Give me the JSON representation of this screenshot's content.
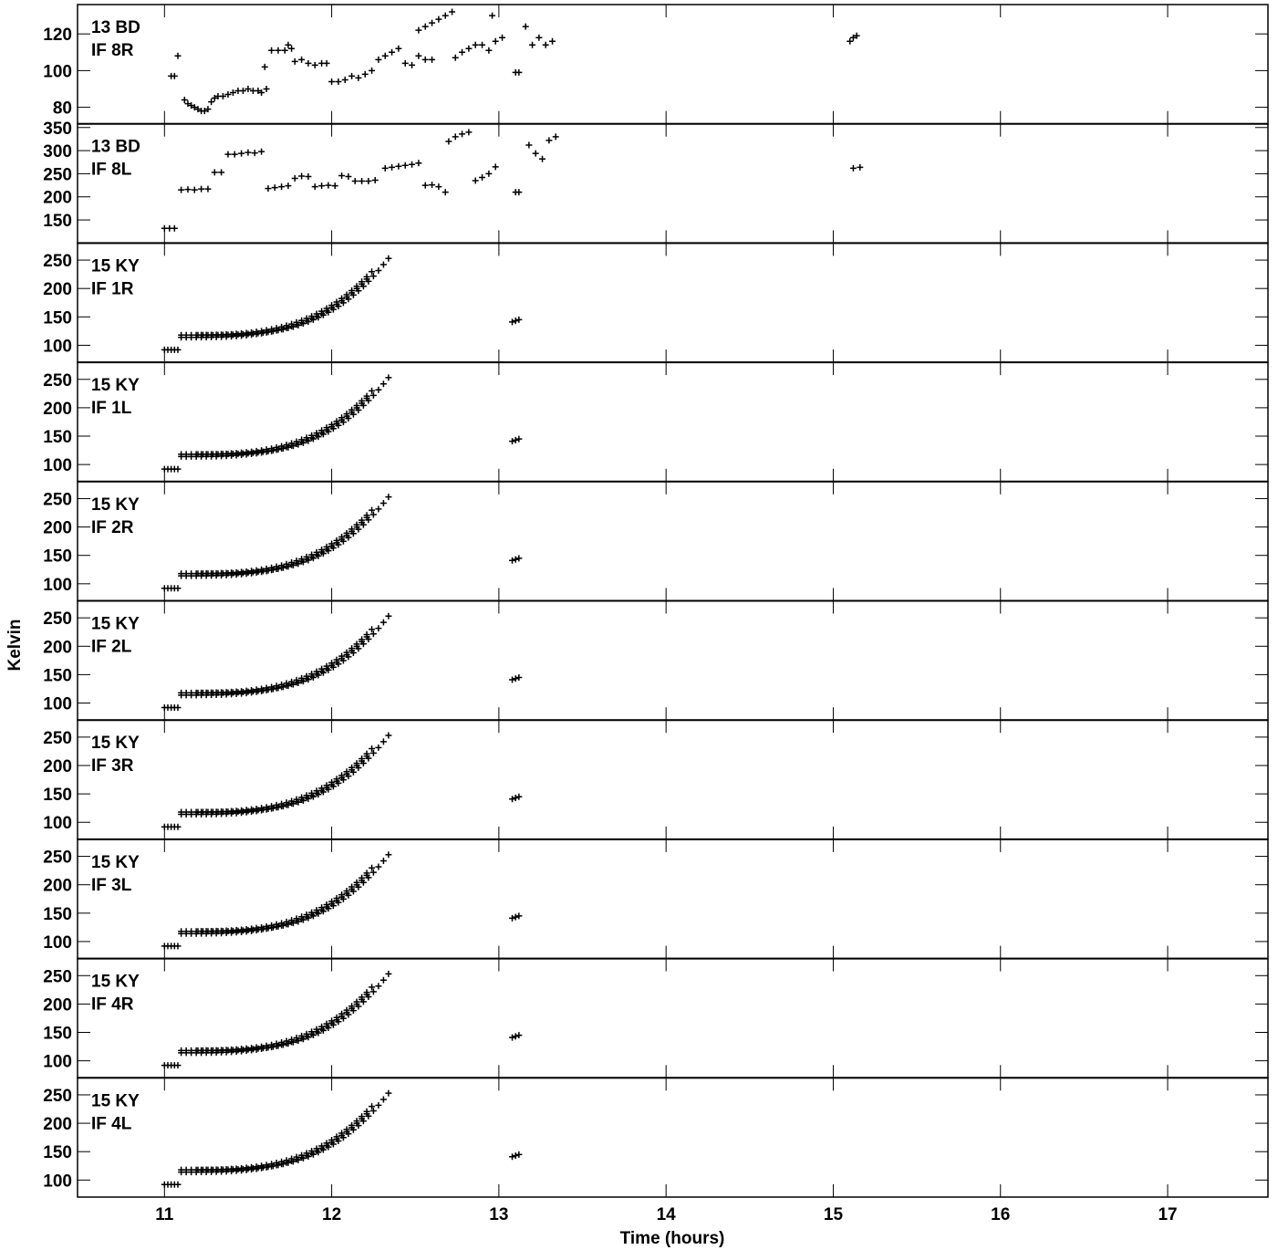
{
  "chart_data": {
    "type": "scatter",
    "marker": "+",
    "xlabel": "Time (hours)",
    "ylabel": "Kelvin",
    "xlim": [
      10.48,
      17.6
    ],
    "xticks": [
      11,
      12,
      13,
      14,
      15,
      16,
      17
    ],
    "grid": false,
    "panels": [
      {
        "label_line1": "13 BD",
        "label_line2": "IF 8R",
        "ylim": [
          71,
          136
        ],
        "yticks": [
          80,
          100,
          120
        ],
        "points": [
          [
            11.04,
            97
          ],
          [
            11.06,
            97
          ],
          [
            11.08,
            108
          ],
          [
            11.12,
            84
          ],
          [
            11.14,
            82
          ],
          [
            11.16,
            81
          ],
          [
            11.18,
            80
          ],
          [
            11.2,
            79
          ],
          [
            11.22,
            78
          ],
          [
            11.24,
            78
          ],
          [
            11.26,
            79
          ],
          [
            11.28,
            83
          ],
          [
            11.3,
            85
          ],
          [
            11.32,
            86
          ],
          [
            11.35,
            86
          ],
          [
            11.38,
            87
          ],
          [
            11.41,
            88
          ],
          [
            11.44,
            89
          ],
          [
            11.47,
            89
          ],
          [
            11.5,
            90
          ],
          [
            11.53,
            89
          ],
          [
            11.56,
            89
          ],
          [
            11.58,
            88
          ],
          [
            11.61,
            90
          ],
          [
            11.6,
            102
          ],
          [
            11.64,
            111
          ],
          [
            11.68,
            111
          ],
          [
            11.72,
            111
          ],
          [
            11.76,
            112
          ],
          [
            11.74,
            114
          ],
          [
            11.78,
            105
          ],
          [
            11.82,
            106
          ],
          [
            11.86,
            104
          ],
          [
            11.9,
            103
          ],
          [
            11.94,
            104
          ],
          [
            11.97,
            104
          ],
          [
            12.0,
            94
          ],
          [
            12.04,
            94
          ],
          [
            12.08,
            95
          ],
          [
            12.12,
            97
          ],
          [
            12.16,
            96
          ],
          [
            12.2,
            98
          ],
          [
            12.24,
            100
          ],
          [
            12.28,
            106
          ],
          [
            12.32,
            108
          ],
          [
            12.36,
            110
          ],
          [
            12.4,
            112
          ],
          [
            12.44,
            104
          ],
          [
            12.48,
            103
          ],
          [
            12.52,
            108
          ],
          [
            12.56,
            106
          ],
          [
            12.6,
            106
          ],
          [
            12.52,
            122
          ],
          [
            12.56,
            124
          ],
          [
            12.6,
            126
          ],
          [
            12.64,
            128
          ],
          [
            12.68,
            130
          ],
          [
            12.72,
            132
          ],
          [
            12.74,
            107
          ],
          [
            12.78,
            110
          ],
          [
            12.82,
            112
          ],
          [
            12.86,
            114
          ],
          [
            12.9,
            114
          ],
          [
            12.94,
            111
          ],
          [
            12.98,
            116
          ],
          [
            13.02,
            118
          ],
          [
            12.96,
            130
          ],
          [
            13.1,
            99
          ],
          [
            13.12,
            99
          ],
          [
            13.16,
            124
          ],
          [
            13.2,
            114
          ],
          [
            13.24,
            118
          ],
          [
            13.28,
            114
          ],
          [
            13.32,
            116
          ],
          [
            15.1,
            116
          ],
          [
            15.12,
            118
          ],
          [
            15.14,
            119
          ]
        ]
      },
      {
        "label_line1": "13 BD",
        "label_line2": "IF 8L",
        "ylim": [
          100,
          358
        ],
        "yticks": [
          150,
          200,
          250,
          300,
          350
        ],
        "points": [
          [
            11.0,
            132
          ],
          [
            11.03,
            132
          ],
          [
            11.06,
            132
          ],
          [
            11.1,
            215
          ],
          [
            11.14,
            216
          ],
          [
            11.18,
            215
          ],
          [
            11.22,
            217
          ],
          [
            11.26,
            217
          ],
          [
            11.3,
            253
          ],
          [
            11.34,
            253
          ],
          [
            11.38,
            292
          ],
          [
            11.42,
            292
          ],
          [
            11.46,
            294
          ],
          [
            11.5,
            296
          ],
          [
            11.54,
            295
          ],
          [
            11.58,
            298
          ],
          [
            11.62,
            218
          ],
          [
            11.66,
            220
          ],
          [
            11.7,
            222
          ],
          [
            11.74,
            224
          ],
          [
            11.78,
            240
          ],
          [
            11.82,
            245
          ],
          [
            11.86,
            244
          ],
          [
            11.9,
            222
          ],
          [
            11.94,
            224
          ],
          [
            11.98,
            225
          ],
          [
            12.02,
            224
          ],
          [
            12.06,
            246
          ],
          [
            12.1,
            244
          ],
          [
            12.14,
            234
          ],
          [
            12.18,
            234
          ],
          [
            12.22,
            234
          ],
          [
            12.26,
            236
          ],
          [
            12.32,
            262
          ],
          [
            12.36,
            264
          ],
          [
            12.4,
            266
          ],
          [
            12.44,
            268
          ],
          [
            12.48,
            270
          ],
          [
            12.52,
            273
          ],
          [
            12.56,
            225
          ],
          [
            12.6,
            226
          ],
          [
            12.64,
            222
          ],
          [
            12.68,
            210
          ],
          [
            12.7,
            320
          ],
          [
            12.74,
            330
          ],
          [
            12.78,
            336
          ],
          [
            12.82,
            340
          ],
          [
            12.86,
            235
          ],
          [
            12.9,
            242
          ],
          [
            12.94,
            250
          ],
          [
            12.98,
            265
          ],
          [
            13.1,
            210
          ],
          [
            13.12,
            210
          ],
          [
            13.18,
            312
          ],
          [
            13.22,
            294
          ],
          [
            13.26,
            282
          ],
          [
            13.3,
            322
          ],
          [
            13.34,
            330
          ],
          [
            15.12,
            262
          ],
          [
            15.16,
            264
          ]
        ]
      },
      {
        "label_line1": "15 KY",
        "label_line2": "IF 1R",
        "ylim": [
          70,
          280
        ],
        "yticks": [
          100,
          150,
          200,
          250
        ],
        "points": []
      },
      {
        "label_line1": "15 KY",
        "label_line2": "IF 1L",
        "ylim": [
          70,
          280
        ],
        "yticks": [
          100,
          150,
          200,
          250
        ],
        "points": []
      },
      {
        "label_line1": "15 KY",
        "label_line2": "IF 2R",
        "ylim": [
          70,
          280
        ],
        "yticks": [
          100,
          150,
          200,
          250
        ],
        "points": []
      },
      {
        "label_line1": "15 KY",
        "label_line2": "IF 2L",
        "ylim": [
          70,
          280
        ],
        "yticks": [
          100,
          150,
          200,
          250
        ],
        "points": []
      },
      {
        "label_line1": "15 KY",
        "label_line2": "IF 3R",
        "ylim": [
          70,
          280
        ],
        "yticks": [
          100,
          150,
          200,
          250
        ],
        "points": []
      },
      {
        "label_line1": "15 KY",
        "label_line2": "IF 3L",
        "ylim": [
          70,
          280
        ],
        "yticks": [
          100,
          150,
          200,
          250
        ],
        "points": []
      },
      {
        "label_line1": "15 KY",
        "label_line2": "IF 4R",
        "ylim": [
          70,
          280
        ],
        "yticks": [
          100,
          150,
          200,
          250
        ],
        "points": []
      },
      {
        "label_line1": "15 KY",
        "label_line2": "IF 4L",
        "ylim": [
          70,
          280
        ],
        "yticks": [
          100,
          150,
          200,
          250
        ],
        "points": []
      }
    ]
  }
}
